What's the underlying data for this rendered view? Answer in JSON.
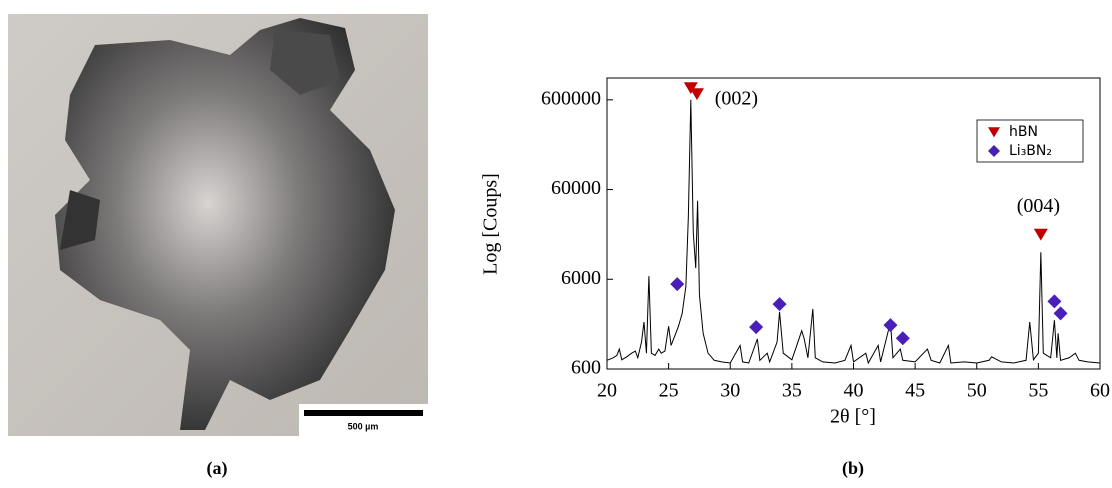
{
  "figure": {
    "panel_a_label": "(a)",
    "panel_b_label": "(b)",
    "scale_bar": "500 µm"
  },
  "chart_data": {
    "type": "line",
    "y_label": "Log [Coups]",
    "x_label": "2θ [°]",
    "log_y": true,
    "color": "#000000",
    "xlim": [
      20,
      60
    ],
    "xticks": [
      20,
      25,
      30,
      35,
      40,
      45,
      50,
      55,
      60
    ],
    "ylim": [
      600,
      1050000
    ],
    "yticks": [
      600,
      6000,
      60000,
      600000
    ],
    "x": [
      20,
      20.5,
      20.8,
      21,
      21.2,
      21.6,
      22,
      22.3,
      22.5,
      22.8,
      23,
      23.2,
      23.4,
      23.6,
      23.9,
      24.2,
      24.4,
      24.7,
      25,
      25.2,
      25.5,
      25.8,
      26.1,
      26.4,
      26.6,
      26.8,
      27.0,
      27.2,
      27.35,
      27.5,
      27.8,
      28.2,
      28.7,
      29.3,
      30,
      30.8,
      31,
      31.5,
      32.2,
      32.4,
      33,
      33.2,
      33.8,
      34,
      34.3,
      35,
      35.8,
      36,
      36.3,
      36.7,
      36.9,
      37.5,
      38.5,
      39.3,
      39.8,
      40,
      41,
      41.2,
      42,
      42.2,
      43,
      43.2,
      43.8,
      44,
      45,
      46,
      46.3,
      47,
      47.7,
      47.9,
      49,
      50,
      51,
      51.2,
      52,
      53,
      54,
      54.3,
      54.6,
      55,
      55.2,
      55.4,
      56,
      56.3,
      56.5,
      56.6,
      56.8,
      57.5,
      58,
      58.3,
      59,
      60
    ],
    "values": [
      750,
      800,
      850,
      1000,
      760,
      820,
      900,
      950,
      800,
      1200,
      2000,
      900,
      6500,
      900,
      850,
      1000,
      900,
      950,
      1800,
      1100,
      1400,
      1800,
      2500,
      5000,
      30000,
      600000,
      20000,
      8000,
      45000,
      4000,
      1500,
      900,
      750,
      720,
      700,
      1100,
      720,
      700,
      1300,
      750,
      900,
      720,
      1200,
      2600,
      900,
      760,
      1600,
      1300,
      800,
      2800,
      800,
      720,
      700,
      750,
      1100,
      720,
      900,
      700,
      1100,
      720,
      2000,
      800,
      1000,
      750,
      720,
      1000,
      750,
      700,
      1100,
      700,
      720,
      700,
      750,
      820,
      720,
      700,
      750,
      2000,
      760,
      900,
      12000,
      900,
      800,
      2100,
      800,
      1500,
      750,
      800,
      900,
      750,
      720,
      700
    ],
    "markers": [
      {
        "name": "hBN",
        "color": "#c00000",
        "marker": "triangle",
        "x": [
          26.8,
          27.3,
          55.2
        ],
        "values": [
          816000,
          700000,
          19000
        ]
      },
      {
        "name": "Li₃BN₂",
        "color": "#4a1fb8",
        "marker": "diamond",
        "x": [
          25.7,
          32.1,
          34,
          43,
          44,
          56.3,
          56.8
        ],
        "values": [
          5300,
          1760,
          3170,
          1850,
          1320,
          3400,
          2500
        ]
      }
    ],
    "annotations": [
      {
        "text": "(002)",
        "x": 30.5,
        "y": 600000
      },
      {
        "text": "(004)",
        "x": 55,
        "y": 38000
      }
    ],
    "legend": "upper right"
  }
}
